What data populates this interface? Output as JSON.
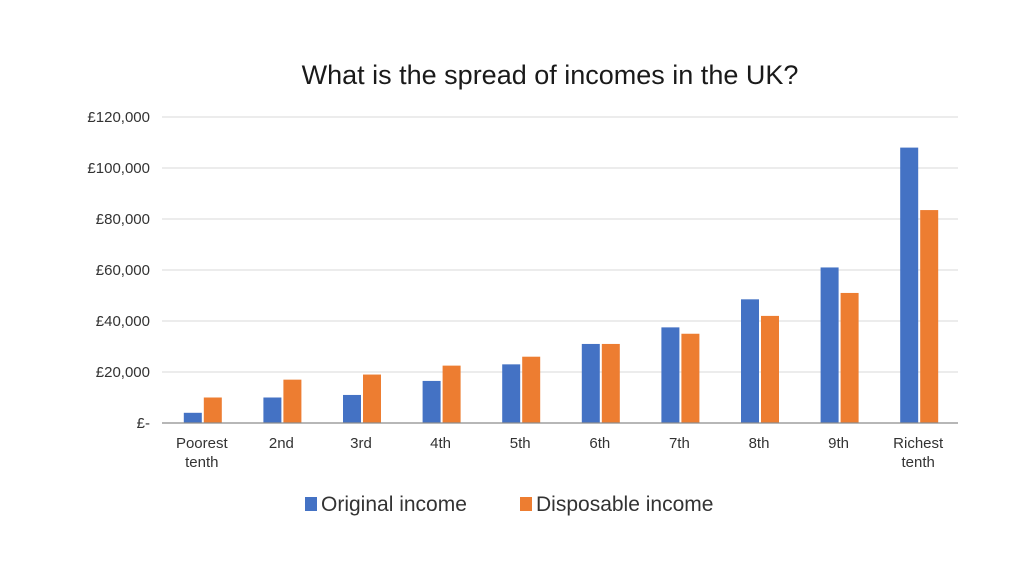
{
  "chart_data": {
    "type": "bar",
    "title": "What is the spread of incomes in the UK?",
    "xlabel": "",
    "ylabel": "",
    "categories": [
      [
        "Poorest",
        "tenth"
      ],
      [
        "2nd"
      ],
      [
        "3rd"
      ],
      [
        "4th"
      ],
      [
        "5th"
      ],
      [
        "6th"
      ],
      [
        "7th"
      ],
      [
        "8th"
      ],
      [
        "9th"
      ],
      [
        "Richest",
        "tenth"
      ]
    ],
    "series": [
      {
        "name": "Original income",
        "color": "#4472c4",
        "values": [
          4000,
          10000,
          11000,
          16500,
          23000,
          31000,
          37500,
          48500,
          61000,
          108000
        ]
      },
      {
        "name": "Disposable income",
        "color": "#ed7d31",
        "values": [
          10000,
          17000,
          19000,
          22500,
          26000,
          31000,
          35000,
          42000,
          51000,
          83500
        ]
      }
    ],
    "ylim": [
      0,
      120000
    ],
    "yticks": [
      0,
      20000,
      40000,
      60000,
      80000,
      100000,
      120000
    ],
    "ytick_labels": [
      "£-",
      "£20,000",
      "£40,000",
      "£60,000",
      "£80,000",
      "£100,000",
      "£120,000"
    ],
    "grid": true,
    "legend_position": "bottom"
  }
}
